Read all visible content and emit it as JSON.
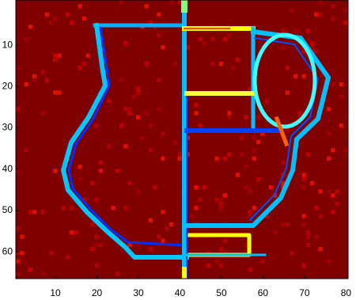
{
  "chart_data": {
    "type": "image",
    "xlim": [
      0.5,
      80.5
    ],
    "ylim": [
      0.5,
      66.5
    ],
    "xticks": [
      10,
      20,
      30,
      40,
      50,
      60,
      70,
      80
    ],
    "yticks": [
      10,
      20,
      30,
      40,
      50,
      60
    ],
    "y_reversed": true
  }
}
